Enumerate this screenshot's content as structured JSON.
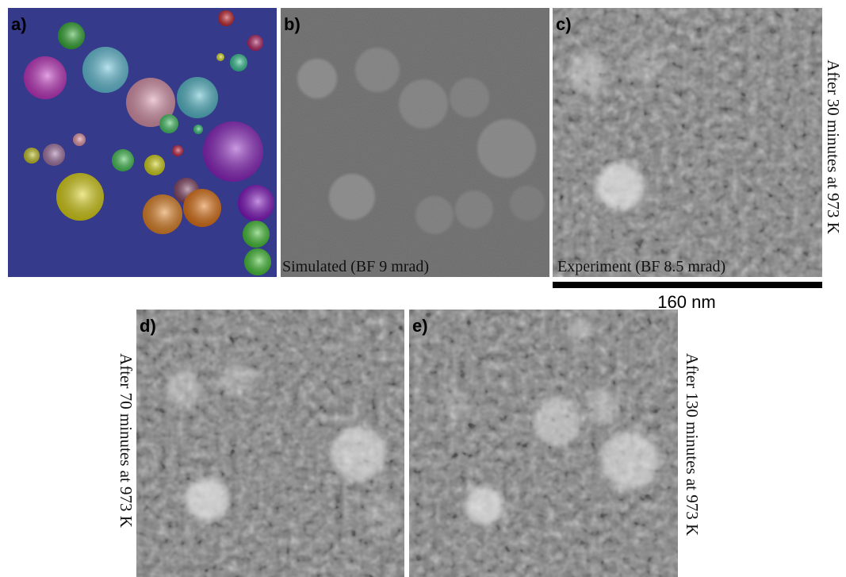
{
  "panels": [
    {
      "label": "a)"
    },
    {
      "label": "b)",
      "caption": "Simulated (BF 9 mrad)"
    },
    {
      "label": "c)",
      "caption": "Experiment (BF 8.5 mrad)",
      "side_text": "After 30 minutes at 973 K"
    },
    {
      "label": "d)",
      "side_text": "After 70 minutes at 973 K"
    },
    {
      "label": "e)",
      "side_text": "After 130 minutes at 973 K"
    }
  ],
  "scale_bar": {
    "label": "160 nm"
  }
}
